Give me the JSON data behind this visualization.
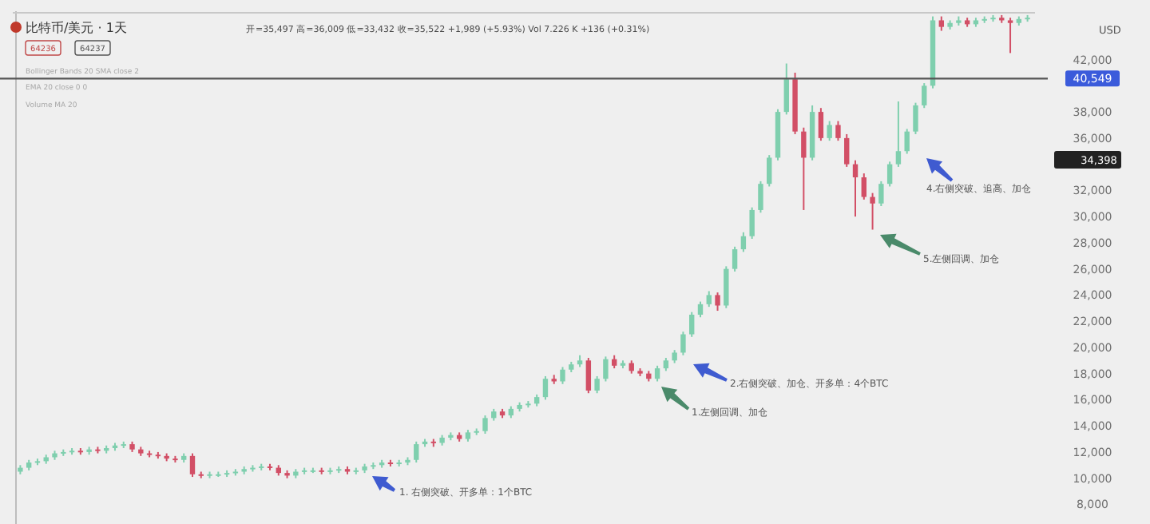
{
  "chart_data": {
    "type": "candlestick",
    "title": "比特币/美元 · 1天",
    "subtitle": "开=35,497 高=36,009 低=33,432 收=35,522 +1,989 (+5.93%) Vol 7.226 K +136 (+0.31%)",
    "annotations": [
      "64236",
      "64237",
      "Bollinger Bands 20 SMA close 2",
      "EMA 20 close 0 0",
      "Volume MA 20",
      "USD",
      "1. 右侧突破、开多单：1个BTC",
      "2.右侧突破、加仓、开多单：4个BTC",
      "1.左侧回调、加仓",
      "4.右侧突破、追高、加仓",
      "5.左侧回调、加仓",
      "34,398"
    ],
    "categories": [
      null,
      null,
      null,
      null,
      null,
      null,
      null,
      null,
      null,
      null,
      null,
      null,
      null,
      null,
      null,
      null,
      null,
      null,
      null,
      null,
      null,
      null,
      null,
      null,
      null,
      null,
      null,
      null,
      null,
      null,
      null,
      null,
      null,
      null,
      null,
      null,
      null,
      null,
      null,
      null,
      null,
      null,
      null,
      null,
      null,
      null,
      null,
      null,
      null,
      null,
      null,
      null,
      null,
      null,
      null,
      null,
      null,
      null,
      null,
      null,
      null,
      null,
      null,
      null,
      null,
      null,
      null,
      null,
      null,
      null,
      null,
      null,
      null,
      null,
      null,
      null,
      null,
      null,
      null,
      null,
      null,
      null,
      null,
      null,
      null,
      null,
      null,
      null,
      null,
      null,
      null,
      null,
      null,
      null,
      null,
      null,
      null,
      null,
      null,
      null,
      null,
      null,
      null,
      null,
      null,
      null,
      null,
      null,
      null,
      null,
      null,
      null,
      null,
      null,
      null,
      null,
      null,
      null
    ],
    "ohlc": [
      [
        10500,
        11000,
        10300,
        10800
      ],
      [
        10800,
        11400,
        10600,
        11200
      ],
      [
        11200,
        11500,
        11000,
        11300
      ],
      [
        11300,
        11800,
        11100,
        11600
      ],
      [
        11600,
        12100,
        11400,
        11900
      ],
      [
        11900,
        12200,
        11700,
        12000
      ],
      [
        12000,
        12300,
        11800,
        12100
      ],
      [
        12100,
        12300,
        11800,
        12000
      ],
      [
        12000,
        12400,
        11800,
        12200
      ],
      [
        12200,
        12400,
        11900,
        12100
      ],
      [
        12100,
        12500,
        11900,
        12300
      ],
      [
        12300,
        12700,
        12100,
        12500
      ],
      [
        12500,
        12800,
        12300,
        12600
      ],
      [
        12600,
        12800,
        12000,
        12200
      ],
      [
        12200,
        12400,
        11700,
        11900
      ],
      [
        11900,
        12100,
        11600,
        11800
      ],
      [
        11800,
        12000,
        11500,
        11700
      ],
      [
        11700,
        11900,
        11300,
        11500
      ],
      [
        11500,
        11700,
        11200,
        11400
      ],
      [
        11400,
        11900,
        11200,
        11700
      ],
      [
        11700,
        11900,
        10100,
        10300
      ],
      [
        10300,
        10500,
        10000,
        10200
      ],
      [
        10200,
        10500,
        10000,
        10300
      ],
      [
        10300,
        10500,
        10100,
        10300
      ],
      [
        10300,
        10600,
        10100,
        10400
      ],
      [
        10400,
        10700,
        10200,
        10500
      ],
      [
        10500,
        10900,
        10300,
        10700
      ],
      [
        10700,
        11000,
        10500,
        10800
      ],
      [
        10800,
        11100,
        10600,
        10900
      ],
      [
        10900,
        11100,
        10600,
        10800
      ],
      [
        10800,
        11000,
        10200,
        10400
      ],
      [
        10400,
        10600,
        10000,
        10200
      ],
      [
        10200,
        10700,
        10000,
        10500
      ],
      [
        10500,
        10800,
        10300,
        10600
      ],
      [
        10600,
        10800,
        10400,
        10600
      ],
      [
        10600,
        10800,
        10300,
        10500
      ],
      [
        10500,
        10800,
        10300,
        10600
      ],
      [
        10600,
        10900,
        10400,
        10700
      ],
      [
        10700,
        10900,
        10300,
        10500
      ],
      [
        10500,
        10800,
        10300,
        10600
      ],
      [
        10600,
        11100,
        10400,
        10900
      ],
      [
        10900,
        11200,
        10700,
        11000
      ],
      [
        11000,
        11400,
        10800,
        11200
      ],
      [
        11200,
        11400,
        10900,
        11100
      ],
      [
        11100,
        11400,
        10900,
        11200
      ],
      [
        11200,
        11600,
        11000,
        11400
      ],
      [
        11400,
        12800,
        11200,
        12600
      ],
      [
        12600,
        13000,
        12400,
        12800
      ],
      [
        12800,
        13000,
        12400,
        12700
      ],
      [
        12700,
        13300,
        12500,
        13100
      ],
      [
        13100,
        13500,
        12900,
        13300
      ],
      [
        13300,
        13500,
        12800,
        13000
      ],
      [
        13000,
        13700,
        12800,
        13500
      ],
      [
        13500,
        13800,
        13300,
        13600
      ],
      [
        13600,
        14800,
        13400,
        14600
      ],
      [
        14600,
        15300,
        14400,
        15100
      ],
      [
        15100,
        15300,
        14600,
        14800
      ],
      [
        14800,
        15500,
        14600,
        15300
      ],
      [
        15300,
        15800,
        15100,
        15600
      ],
      [
        15600,
        15900,
        15400,
        15700
      ],
      [
        15700,
        16400,
        15500,
        16200
      ],
      [
        16200,
        17800,
        16000,
        17600
      ],
      [
        17600,
        17900,
        17200,
        17400
      ],
      [
        17400,
        18500,
        17200,
        18300
      ],
      [
        18300,
        18900,
        18100,
        18700
      ],
      [
        18700,
        19400,
        18500,
        19000
      ],
      [
        19000,
        19200,
        16500,
        16700
      ],
      [
        16700,
        17800,
        16500,
        17600
      ],
      [
        17600,
        19300,
        17400,
        19100
      ],
      [
        19100,
        19400,
        18400,
        18600
      ],
      [
        18600,
        19000,
        18400,
        18800
      ],
      [
        18800,
        19000,
        18000,
        18200
      ],
      [
        18200,
        18400,
        17800,
        18000
      ],
      [
        18000,
        18200,
        17400,
        17600
      ],
      [
        17600,
        18600,
        17400,
        18400
      ],
      [
        18400,
        19200,
        18200,
        19000
      ],
      [
        19000,
        19800,
        18800,
        19600
      ],
      [
        19600,
        21200,
        19400,
        21000
      ],
      [
        21000,
        22700,
        20800,
        22500
      ],
      [
        22500,
        23500,
        22300,
        23300
      ],
      [
        23300,
        24300,
        23100,
        24000
      ],
      [
        24000,
        24200,
        22800,
        23200
      ],
      [
        23200,
        26200,
        23000,
        26000
      ],
      [
        26000,
        27700,
        25800,
        27500
      ],
      [
        27500,
        28800,
        27300,
        28500
      ],
      [
        28500,
        30700,
        28300,
        30500
      ],
      [
        30500,
        32700,
        30300,
        32500
      ],
      [
        32500,
        34700,
        32300,
        34500
      ],
      [
        34500,
        38200,
        34300,
        38000
      ],
      [
        38000,
        41700,
        37800,
        40500
      ],
      [
        40500,
        41000,
        36300,
        36500
      ],
      [
        36500,
        36800,
        30500,
        34500
      ],
      [
        34500,
        38500,
        34300,
        38000
      ],
      [
        38000,
        38300,
        35800,
        36000
      ],
      [
        36000,
        37300,
        35800,
        37000
      ],
      [
        37000,
        37300,
        35800,
        36000
      ],
      [
        36000,
        36300,
        33800,
        34000
      ],
      [
        34000,
        34300,
        30000,
        33000
      ],
      [
        33000,
        33300,
        31300,
        31500
      ],
      [
        31500,
        31800,
        29000,
        31000
      ],
      [
        31000,
        32700,
        30800,
        32500
      ],
      [
        32500,
        34200,
        32300,
        34000
      ],
      [
        34000,
        38800,
        33800,
        35000
      ],
      [
        35000,
        36700,
        34800,
        36500
      ],
      [
        36500,
        38700,
        36300,
        38500
      ],
      [
        38500,
        40200,
        38300,
        40000
      ],
      [
        40000,
        45300,
        39800,
        45000
      ],
      [
        45000,
        45300,
        44200,
        44500
      ],
      [
        44500,
        45000,
        44300,
        44800
      ],
      [
        44800,
        45300,
        44600,
        45000
      ],
      [
        45000,
        45200,
        44500,
        44700
      ],
      [
        44700,
        45200,
        44500,
        45000
      ],
      [
        45000,
        45300,
        44800,
        45100
      ],
      [
        45100,
        45400,
        44900,
        45200
      ],
      [
        45200,
        45400,
        44800,
        45000
      ],
      [
        45000,
        45200,
        42500,
        44800
      ],
      [
        44800,
        45300,
        44600,
        45100
      ],
      [
        45100,
        45400,
        44900,
        45200
      ]
    ],
    "ylim": [
      6500,
      45700
    ],
    "yticks": [
      {
        "value": 8000,
        "label": "8,000"
      },
      {
        "value": 10000,
        "label": "10,000"
      },
      {
        "value": 12000,
        "label": "12,000"
      },
      {
        "value": 14000,
        "label": "14,000"
      },
      {
        "value": 16000,
        "label": "16,000"
      },
      {
        "value": 18000,
        "label": "18,000"
      },
      {
        "value": 20000,
        "label": "20,000"
      },
      {
        "value": 22000,
        "label": "22,000"
      },
      {
        "value": 24000,
        "label": "24,000"
      },
      {
        "value": 26000,
        "label": "26,000"
      },
      {
        "value": 28000,
        "label": "28,000"
      },
      {
        "value": 30000,
        "label": "30,000"
      },
      {
        "value": 32000,
        "label": "32,000"
      },
      {
        "value": 36000,
        "label": "36,000"
      },
      {
        "value": 38000,
        "label": "38,000"
      },
      {
        "value": 42000,
        "label": "42,000"
      }
    ],
    "ref_lines": [
      {
        "axis": "y",
        "value": 40549,
        "label": "40,549",
        "color": "#555555"
      }
    ],
    "tick_labels": "y",
    "grid": false
  }
}
